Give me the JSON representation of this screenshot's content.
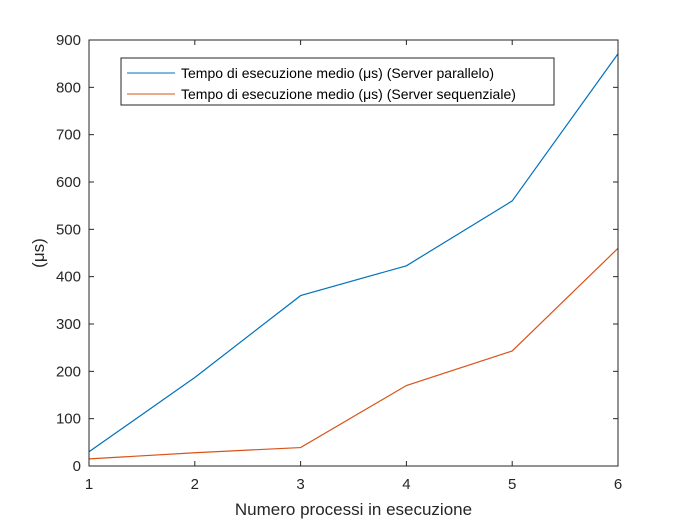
{
  "chart_data": {
    "type": "line",
    "xlabel": "Numero processi in esecuzione",
    "ylabel": "(μs)",
    "xlim": [
      1,
      6
    ],
    "ylim": [
      0,
      900
    ],
    "xticks": [
      "1",
      "2",
      "3",
      "4",
      "5",
      "6"
    ],
    "yticks": [
      "0",
      "100",
      "200",
      "300",
      "400",
      "500",
      "600",
      "700",
      "800",
      "900"
    ],
    "x": [
      1,
      2,
      3,
      4,
      5,
      6
    ],
    "legend_position": "top-left",
    "grid": false,
    "series": [
      {
        "name": "Tempo di esecuzione medio (μs) (Server parallelo)",
        "color": "#0072BD",
        "values": [
          30,
          187,
          360,
          423,
          560,
          871
        ]
      },
      {
        "name": "Tempo di esecuzione medio (μs) (Server sequenziale)",
        "color": "#D95319",
        "values": [
          15,
          28,
          39,
          170,
          243,
          460
        ]
      }
    ]
  }
}
